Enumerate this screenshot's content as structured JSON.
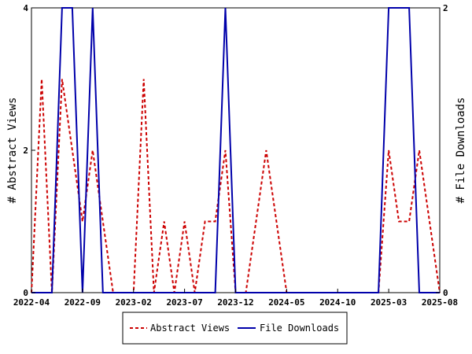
{
  "chart_data": {
    "type": "line",
    "xlabel": "",
    "y_left_label": "# Abstract Views",
    "y_right_label": "# File Downloads",
    "y_left_range": [
      0,
      4
    ],
    "y_right_range": [
      0,
      2
    ],
    "y_left_ticks": [
      "0",
      "2",
      "4"
    ],
    "y_right_ticks": [
      "0",
      "2"
    ],
    "x_tick_labels": [
      "2022-04",
      "2022-09",
      "2023-02",
      "2023-07",
      "2023-12",
      "2024-05",
      "2024-10",
      "2025-03",
      "2025-08"
    ],
    "grid": false,
    "legend_position": "bottom-center",
    "x": [
      "2022-04",
      "2022-05",
      "2022-06",
      "2022-07",
      "2022-08",
      "2022-09",
      "2022-10",
      "2022-11",
      "2022-12",
      "2023-01",
      "2023-02",
      "2023-03",
      "2023-04",
      "2023-05",
      "2023-06",
      "2023-07",
      "2023-08",
      "2023-09",
      "2023-10",
      "2023-11",
      "2023-12",
      "2024-01",
      "2024-02",
      "2024-03",
      "2024-04",
      "2024-05",
      "2024-06",
      "2024-07",
      "2024-08",
      "2024-09",
      "2024-10",
      "2024-11",
      "2024-12",
      "2025-01",
      "2025-02",
      "2025-03",
      "2025-04",
      "2025-05",
      "2025-06",
      "2025-07",
      "2025-08"
    ],
    "series": [
      {
        "name": "Abstract Views",
        "axis": "left",
        "color": "#cc0000",
        "style": "dashed",
        "values": [
          0,
          3,
          0,
          3,
          2,
          1,
          2,
          1,
          0,
          0,
          0,
          3,
          0,
          1,
          0,
          1,
          0,
          1,
          1,
          2,
          0,
          0,
          1,
          2,
          1,
          0,
          0,
          0,
          0,
          0,
          0,
          0,
          0,
          0,
          0,
          2,
          1,
          1,
          2,
          1,
          0
        ]
      },
      {
        "name": "File Downloads",
        "axis": "right",
        "color": "#0000aa",
        "style": "solid",
        "values": [
          0,
          0,
          0,
          2,
          2,
          0,
          2,
          0,
          0,
          0,
          0,
          0,
          0,
          0,
          0,
          0,
          0,
          0,
          0,
          2,
          0,
          0,
          0,
          0,
          0,
          0,
          0,
          0,
          0,
          0,
          0,
          0,
          0,
          0,
          0,
          2,
          2,
          2,
          0,
          0,
          0
        ]
      }
    ]
  }
}
